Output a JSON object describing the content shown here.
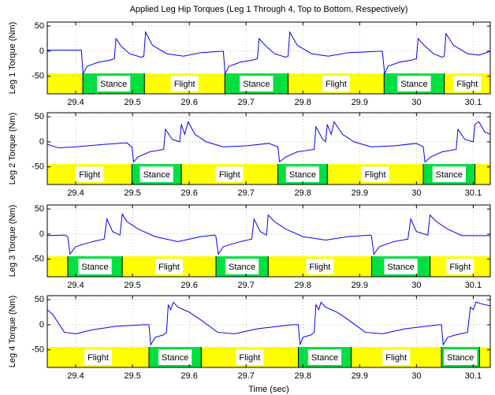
{
  "chart_data": [
    {
      "type": "line",
      "title": "Applied Leg Hip Torques (Leg 1 Through 4, Top to Bottom, Respectively)",
      "ylabel": "Leg 1 Torque (Nm)",
      "color": "#0000ff",
      "grid": true,
      "xlim": [
        29.35,
        30.13
      ],
      "ylim": [
        -85,
        58
      ],
      "xticks": [
        29.4,
        29.5,
        29.6,
        29.7,
        29.8,
        29.9,
        30,
        30.1
      ],
      "yticks": [
        50,
        0,
        -50
      ],
      "x": [
        29.35,
        29.41,
        29.413,
        29.42,
        29.44,
        29.46,
        29.468,
        29.471,
        29.48,
        29.495,
        29.515,
        29.52,
        29.523,
        29.535,
        29.56,
        29.59,
        29.62,
        29.66,
        29.663,
        29.67,
        29.69,
        29.71,
        29.72,
        29.723,
        29.735,
        29.75,
        29.77,
        29.774,
        29.777,
        29.79,
        29.815,
        29.845,
        29.88,
        29.94,
        29.944,
        29.95,
        29.97,
        29.99,
        30.0,
        30.003,
        30.015,
        30.03,
        30.045,
        30.049,
        30.052,
        30.065,
        30.09,
        30.11,
        30.13
      ],
      "values": [
        2,
        2,
        -45,
        -30,
        -22,
        -18,
        -15,
        25,
        10,
        -5,
        -12,
        -10,
        38,
        12,
        -5,
        -10,
        -3,
        0,
        -45,
        -30,
        -22,
        -18,
        -15,
        25,
        10,
        -5,
        -12,
        -10,
        38,
        12,
        -5,
        -10,
        -3,
        0,
        -45,
        -30,
        -22,
        -18,
        -15,
        25,
        10,
        -5,
        -12,
        -10,
        35,
        12,
        -5,
        -8,
        0
      ],
      "phases": [
        {
          "label": null,
          "start": 29.35,
          "end": 29.4125,
          "color": "#ffff00"
        },
        {
          "label": "Stance",
          "start": 29.4125,
          "end": 29.521,
          "color": "#00e040"
        },
        {
          "label": "Flight",
          "start": 29.521,
          "end": 29.6625,
          "color": "#ffff00"
        },
        {
          "label": "Stance",
          "start": 29.6625,
          "end": 29.774,
          "color": "#00e040"
        },
        {
          "label": "Flight",
          "start": 29.774,
          "end": 29.943,
          "color": "#ffff00"
        },
        {
          "label": "Stance",
          "start": 29.943,
          "end": 30.049,
          "color": "#00e040"
        },
        {
          "label": "Flight",
          "start": 30.049,
          "end": 30.13,
          "color": "#ffff00"
        }
      ]
    },
    {
      "type": "line",
      "ylabel": "Leg 2 Torque (Nm)",
      "color": "#0000ff",
      "grid": true,
      "xlim": [
        29.35,
        30.13
      ],
      "ylim": [
        -85,
        58
      ],
      "xticks": [
        29.4,
        29.5,
        29.6,
        29.7,
        29.8,
        29.9,
        30,
        30.1
      ],
      "yticks": [
        50,
        0,
        -50
      ],
      "x": [
        29.35,
        29.37,
        29.4,
        29.45,
        29.49,
        29.499,
        29.502,
        29.51,
        29.53,
        29.555,
        29.558,
        29.57,
        29.583,
        29.586,
        29.592,
        29.598,
        29.61,
        29.63,
        29.66,
        29.7,
        29.74,
        29.756,
        29.759,
        29.77,
        29.79,
        29.82,
        29.823,
        29.835,
        29.84,
        29.843,
        29.85,
        29.855,
        29.87,
        29.89,
        29.92,
        29.96,
        30.0,
        30.012,
        30.015,
        30.025,
        30.045,
        30.07,
        30.073,
        30.085,
        30.1,
        30.103,
        30.11,
        30.12,
        30.13
      ],
      "values": [
        -5,
        -12,
        -10,
        -5,
        -2,
        -10,
        -40,
        -30,
        -20,
        -15,
        25,
        5,
        0,
        35,
        15,
        40,
        15,
        0,
        -10,
        -8,
        -3,
        -10,
        -40,
        -30,
        -20,
        -15,
        30,
        5,
        0,
        35,
        15,
        40,
        15,
        0,
        -10,
        -8,
        -3,
        -10,
        -40,
        -30,
        -20,
        -15,
        25,
        5,
        0,
        35,
        40,
        20,
        15
      ],
      "phases": [
        {
          "label": "Flight",
          "start": 29.35,
          "end": 29.499,
          "color": "#ffff00"
        },
        {
          "label": "Stance",
          "start": 29.499,
          "end": 29.586,
          "color": "#00e040"
        },
        {
          "label": "Flight",
          "start": 29.586,
          "end": 29.756,
          "color": "#ffff00"
        },
        {
          "label": "Stance",
          "start": 29.756,
          "end": 29.843,
          "color": "#00e040"
        },
        {
          "label": "Flight",
          "start": 29.843,
          "end": 30.012,
          "color": "#ffff00"
        },
        {
          "label": "Stance",
          "start": 30.012,
          "end": 30.103,
          "color": "#00e040"
        },
        {
          "label": null,
          "start": 30.103,
          "end": 30.13,
          "color": "#ffff00"
        }
      ]
    },
    {
      "type": "line",
      "ylabel": "Leg 3 Torque (Nm)",
      "color": "#0000ff",
      "grid": true,
      "xlim": [
        29.35,
        30.13
      ],
      "ylim": [
        -85,
        58
      ],
      "xticks": [
        29.4,
        29.5,
        29.6,
        29.7,
        29.8,
        29.9,
        30,
        30.1
      ],
      "yticks": [
        50,
        0,
        -50
      ],
      "x": [
        29.35,
        29.38,
        29.386,
        29.39,
        29.4,
        29.43,
        29.45,
        29.455,
        29.465,
        29.478,
        29.482,
        29.49,
        29.51,
        29.54,
        29.58,
        29.62,
        29.645,
        29.647,
        29.651,
        29.66,
        29.69,
        29.71,
        29.714,
        29.725,
        29.736,
        29.739,
        29.75,
        29.77,
        29.8,
        29.84,
        29.88,
        29.92,
        29.921,
        29.925,
        29.935,
        29.96,
        29.985,
        29.99,
        30.0,
        30.02,
        30.024,
        30.035,
        30.055,
        30.08,
        30.13
      ],
      "values": [
        -3,
        -2,
        -5,
        -40,
        -25,
        -15,
        -10,
        30,
        5,
        -2,
        40,
        25,
        10,
        -5,
        -15,
        -5,
        -2,
        -5,
        -40,
        -25,
        -15,
        -10,
        30,
        5,
        -2,
        38,
        25,
        10,
        -5,
        -12,
        -5,
        -2,
        -5,
        -40,
        -25,
        -15,
        -10,
        30,
        5,
        -2,
        38,
        25,
        10,
        -3,
        -3
      ],
      "phases": [
        {
          "label": null,
          "start": 29.35,
          "end": 29.386,
          "color": "#ffff00"
        },
        {
          "label": "Stance",
          "start": 29.386,
          "end": 29.482,
          "color": "#00e040"
        },
        {
          "label": "Flight",
          "start": 29.482,
          "end": 29.647,
          "color": "#ffff00"
        },
        {
          "label": "Stance",
          "start": 29.647,
          "end": 29.739,
          "color": "#00e040"
        },
        {
          "label": "Flight",
          "start": 29.739,
          "end": 29.921,
          "color": "#ffff00"
        },
        {
          "label": "Stance",
          "start": 29.921,
          "end": 30.024,
          "color": "#00e040"
        },
        {
          "label": "Flight",
          "start": 30.024,
          "end": 30.13,
          "color": "#ffff00"
        }
      ]
    },
    {
      "type": "line",
      "ylabel": "Leg 4 Torque (Nm)",
      "xlabel": "Time (sec)",
      "color": "#0000ff",
      "grid": true,
      "xlim": [
        29.35,
        30.13
      ],
      "ylim": [
        -85,
        58
      ],
      "xticks": [
        29.4,
        29.5,
        29.6,
        29.7,
        29.8,
        29.9,
        30,
        30.1
      ],
      "yticks": [
        50,
        0,
        -50
      ],
      "x": [
        29.35,
        29.36,
        29.38,
        29.4,
        29.43,
        29.47,
        29.52,
        29.529,
        29.532,
        29.54,
        29.555,
        29.56,
        29.563,
        29.567,
        29.572,
        29.58,
        29.6,
        29.62,
        29.65,
        29.68,
        29.72,
        29.78,
        29.792,
        29.795,
        29.8,
        29.815,
        29.82,
        29.823,
        29.828,
        29.832,
        29.84,
        29.86,
        29.88,
        29.91,
        29.94,
        29.98,
        30.04,
        30.044,
        30.047,
        30.055,
        30.07,
        30.09,
        30.095,
        30.1,
        30.105,
        30.12,
        30.13
      ],
      "values": [
        30,
        20,
        -15,
        -18,
        -10,
        -3,
        0,
        0,
        -40,
        -25,
        -20,
        -15,
        40,
        30,
        45,
        35,
        25,
        10,
        -15,
        -18,
        -8,
        0,
        0,
        -40,
        -25,
        -20,
        -15,
        40,
        30,
        45,
        35,
        25,
        10,
        -15,
        -18,
        -8,
        0,
        0,
        -40,
        -25,
        -20,
        -15,
        35,
        30,
        45,
        40,
        38
      ],
      "phases": [
        {
          "label": "Flight",
          "start": 29.35,
          "end": 29.529,
          "color": "#ffff00"
        },
        {
          "label": "Stance",
          "start": 29.529,
          "end": 29.621,
          "color": "#00e040"
        },
        {
          "label": "Flight",
          "start": 29.621,
          "end": 29.792,
          "color": "#ffff00"
        },
        {
          "label": "Stance",
          "start": 29.792,
          "end": 29.885,
          "color": "#00e040"
        },
        {
          "label": "Flight",
          "start": 29.885,
          "end": 30.044,
          "color": "#ffff00"
        },
        {
          "label": "Stance",
          "start": 30.044,
          "end": 30.111,
          "color": "#00e040"
        },
        {
          "label": null,
          "start": 30.111,
          "end": 30.13,
          "color": "#ffff00"
        }
      ]
    }
  ]
}
